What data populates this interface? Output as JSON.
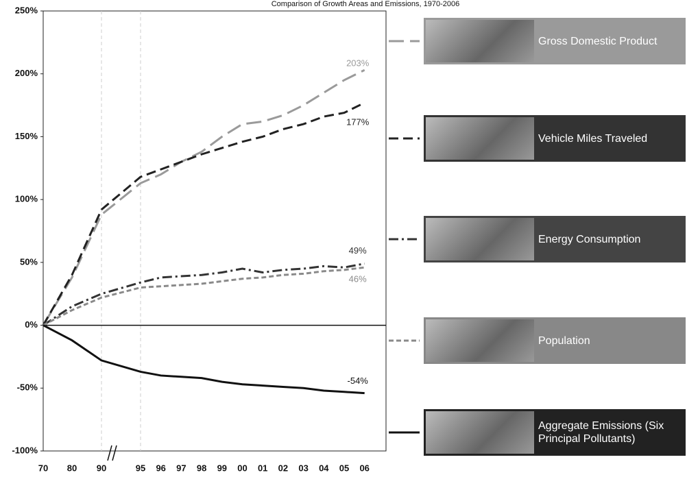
{
  "chart_data": {
    "type": "line",
    "title": "Comparison of Growth Areas and Emissions, 1970-2006",
    "categories": [
      "70",
      "80",
      "90",
      "95",
      "96",
      "97",
      "98",
      "99",
      "00",
      "01",
      "02",
      "03",
      "04",
      "05",
      "06"
    ],
    "ylim": [
      -100,
      250
    ],
    "yticks": [
      {
        "value": -100,
        "label": "-100%"
      },
      {
        "value": -50,
        "label": "-50%"
      },
      {
        "value": 0,
        "label": "0%"
      },
      {
        "value": 50,
        "label": "50%"
      },
      {
        "value": 100,
        "label": "100%"
      },
      {
        "value": 150,
        "label": "150%"
      },
      {
        "value": 200,
        "label": "200%"
      },
      {
        "value": 250,
        "label": "250%"
      }
    ],
    "series": [
      {
        "name": "Gross Domestic Product",
        "color": "#9a9a9a",
        "values": [
          0,
          38,
          88,
          113,
          120,
          130,
          138,
          150,
          160,
          162,
          167,
          175,
          185,
          195,
          203
        ],
        "value_labels": [
          null,
          null,
          null,
          null,
          null,
          null,
          null,
          null,
          null,
          null,
          null,
          null,
          null,
          null,
          "203%"
        ]
      },
      {
        "name": "Vehicle Miles Traveled",
        "color": "#222222",
        "values": [
          0,
          40,
          92,
          118,
          124,
          130,
          136,
          141,
          146,
          150,
          156,
          160,
          166,
          169,
          177
        ],
        "value_labels": [
          null,
          null,
          null,
          null,
          null,
          null,
          null,
          null,
          null,
          null,
          null,
          null,
          null,
          null,
          "177%"
        ]
      },
      {
        "name": "Energy Consumption",
        "color": "#333333",
        "values": [
          0,
          15,
          25,
          34,
          38,
          39,
          40,
          42,
          45,
          42,
          44,
          45,
          47,
          46,
          49
        ],
        "value_labels": [
          null,
          null,
          null,
          null,
          null,
          null,
          null,
          null,
          null,
          null,
          null,
          null,
          null,
          null,
          "49%"
        ]
      },
      {
        "name": "Population",
        "color": "#8a8a8a",
        "values": [
          0,
          12,
          22,
          30,
          31,
          32,
          33,
          35,
          37,
          38,
          40,
          41,
          43,
          44,
          46
        ],
        "value_labels": [
          null,
          null,
          null,
          null,
          null,
          null,
          null,
          null,
          null,
          null,
          null,
          null,
          null,
          null,
          "46%"
        ]
      },
      {
        "name": "Aggregate Emissions (Six Principal Pollutants)",
        "color": "#111111",
        "values": [
          0,
          -12,
          -28,
          -37,
          -40,
          -41,
          -42,
          -45,
          -47,
          -48,
          -49,
          -50,
          -52,
          -53,
          -54
        ],
        "value_labels": [
          null,
          null,
          null,
          null,
          null,
          null,
          null,
          null,
          null,
          null,
          null,
          null,
          null,
          null,
          "-54%"
        ]
      }
    ]
  }
}
